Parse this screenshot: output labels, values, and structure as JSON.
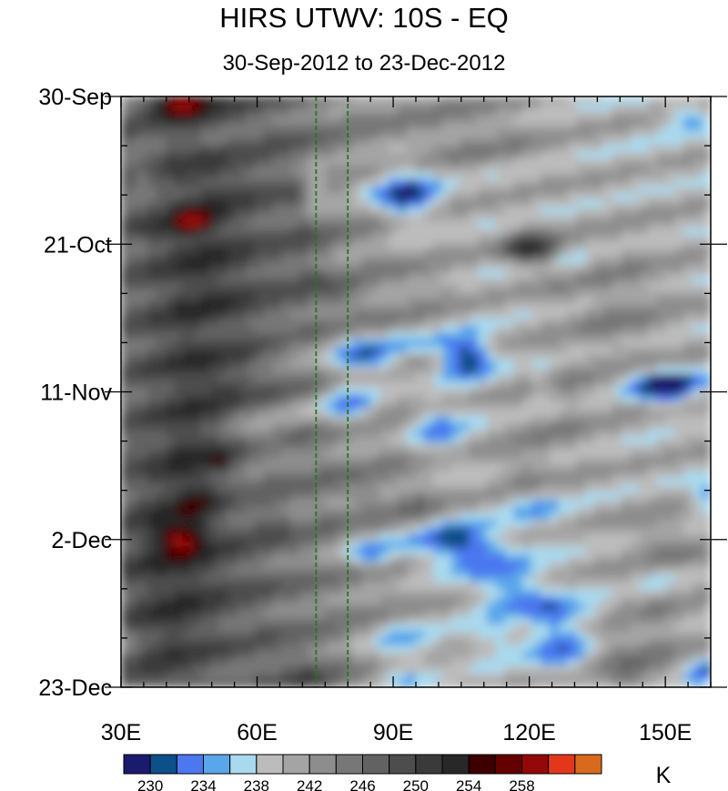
{
  "chart_data": {
    "type": "heatmap",
    "title": "HIRS UTWV: 10S - EQ",
    "subtitle": "30-Sep-2012 to 23-Dec-2012",
    "x_axis": {
      "range_deg": [
        30,
        160
      ],
      "tick_values": [
        30,
        60,
        90,
        120,
        150
      ],
      "tick_labels": [
        "30E",
        "60E",
        "90E",
        "120E",
        "150E"
      ]
    },
    "y_axis": {
      "tick_labels": [
        "30-Sep",
        "21-Oct",
        "11-Nov",
        "2-Dec",
        "23-Dec"
      ],
      "tick_day_offsets": [
        0,
        21,
        42,
        63,
        84
      ],
      "range_days": [
        0,
        84
      ]
    },
    "reference_lines_lon": [
      73,
      80
    ],
    "colorbar": {
      "unit": "K",
      "levels": [
        230,
        232,
        234,
        236,
        238,
        240,
        242,
        244,
        246,
        248,
        250,
        252,
        254,
        256,
        258
      ],
      "labels": [
        "230",
        "234",
        "238",
        "242",
        "246",
        "250",
        "254",
        "258"
      ],
      "colors": [
        "#1a1a6e",
        "#0d4f8a",
        "#4b77f0",
        "#5aa6ea",
        "#a9d9ee",
        "#bcbcbc",
        "#a4a4a4",
        "#8d8d8d",
        "#777777",
        "#626262",
        "#4d4d4d",
        "#3a3a3a",
        "#282828",
        "#3d0000",
        "#650000",
        "#940808",
        "#e3371c",
        "#d96a1d"
      ]
    },
    "colors": {
      "ref_line": "#1f7a1f"
    }
  }
}
